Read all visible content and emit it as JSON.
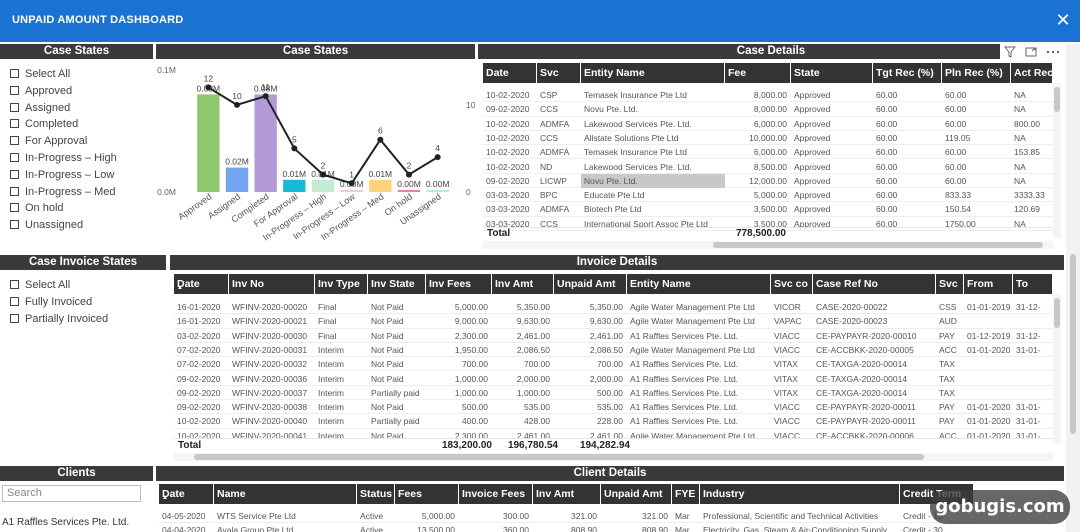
{
  "window": {
    "title": "UNPAID AMOUNT DASHBOARD",
    "close": "✕"
  },
  "case_states_slicer": {
    "header": "Case States",
    "items": [
      "Select All",
      "Approved",
      "Assigned",
      "Completed",
      "For Approval",
      "In-Progress – High",
      "In-Progress – Low",
      "In-Progress – Med",
      "On hold",
      "Unassigned"
    ]
  },
  "case_states_chart": {
    "header": "Case States",
    "y_left_ticks": [
      "0.1M",
      "0.0M"
    ],
    "y_right_ticks": [
      "10",
      "0"
    ]
  },
  "chart_data": {
    "type": "bar",
    "categories": [
      "Approved",
      "Assigned",
      "Completed",
      "For Approval",
      "In-Progress – High",
      "In-Progress – Low",
      "In-Progress – Med",
      "On hold",
      "Unassigned"
    ],
    "series": [
      {
        "values": [
          0.08,
          0.02,
          0.08,
          0.01,
          0.01,
          0.0,
          0.01,
          0.0,
          0.0
        ],
        "data_labels": [
          "0.08M",
          "0.02M",
          "0.08M",
          "0.01M",
          "0.01M",
          "0.00M",
          "0.01M",
          "0.00M",
          "0.00M"
        ],
        "type": "bar"
      },
      {
        "values": [
          12,
          10,
          11,
          5,
          2,
          1,
          6,
          2,
          4
        ],
        "type": "line"
      }
    ],
    "colors": [
      "#8bc96a",
      "#72a6f0",
      "#b59ad9",
      "#18b9d4",
      "#c3ecd2",
      "#f7c9d8",
      "#ffd27a",
      "#f17aa8",
      "#b3eec7"
    ],
    "ylim_left": [
      0,
      0.1
    ],
    "ylim_right": [
      0,
      14
    ],
    "grid": false
  },
  "case_details": {
    "header": "Case Details",
    "icons": [
      "filter-icon",
      "focus-icon",
      "more-icon"
    ],
    "columns": [
      "Date",
      "Svc",
      "Entity Name",
      "Fee",
      "State",
      "Tgt Rec (%)",
      "Pln Rec (%)",
      "Act Rec"
    ],
    "rows": [
      [
        "10-02-2020",
        "CSP",
        "Temasek Insurance Pte Ltd",
        "8,000.00",
        "Approved",
        "60.00",
        "60.00",
        "NA"
      ],
      [
        "09-02-2020",
        "CCS",
        "Novu Pte. Ltd.",
        "8,000.00",
        "Approved",
        "60.00",
        "60.00",
        "NA"
      ],
      [
        "10-02-2020",
        "ADMFA",
        "Lakewood Services Pte. Ltd.",
        "6,000.00",
        "Approved",
        "60.00",
        "60.00",
        "800.00"
      ],
      [
        "10-02-2020",
        "CCS",
        "Allstate Solutions Pte Ltd",
        "10,000.00",
        "Approved",
        "60.00",
        "119.05",
        "NA"
      ],
      [
        "10-02-2020",
        "ADMFA",
        "Temasek Insurance Pte Ltd",
        "6,000.00",
        "Approved",
        "60.00",
        "60.00",
        "153.85"
      ],
      [
        "10-02-2020",
        "ND",
        "Lakewood Services Pte. Ltd.",
        "8,500.00",
        "Approved",
        "60.00",
        "60.00",
        "NA"
      ],
      [
        "09-02-2020",
        "LICWP",
        "Novu Pte. Ltd.",
        "12,000.00",
        "Approved",
        "60.00",
        "60.00",
        "NA"
      ],
      [
        "03-03-2020",
        "BPC",
        "Educate Pte Ltd",
        "5,000.00",
        "Approved",
        "60.00",
        "833.33",
        "3333.33"
      ],
      [
        "03-03-2020",
        "ADMFA",
        "Biotech Pte Ltd",
        "3,500.00",
        "Approved",
        "60.00",
        "150.54",
        "120.69"
      ],
      [
        "03-03-2020",
        "CCS",
        "International Sport Assoc Pte Ltd",
        "3,500.00",
        "Approved",
        "60.00",
        "1750.00",
        "NA"
      ]
    ],
    "total_label": "Total",
    "total_fee": "778,500.00"
  },
  "case_invoice_slicer": {
    "header": "Case Invoice States",
    "items": [
      "Select All",
      "Fully Invoiced",
      "Partially Invoiced"
    ]
  },
  "invoice_details": {
    "header": "Invoice Details",
    "columns": [
      "Date",
      "Inv No",
      "Inv Type",
      "Inv State",
      "Inv Fees",
      "Inv Amt",
      "Unpaid Amt",
      "Entity Name",
      "Svc co",
      "Case Ref No",
      "Svc",
      "From",
      "To"
    ],
    "rows": [
      [
        "16-01-2020",
        "WFINV-2020-00020",
        "Final",
        "Not Paid",
        "5,000.00",
        "5,350.00",
        "5,350.00",
        "Agile Water Management Pte Ltd",
        "VICOR",
        "CASE-2020-00022",
        "CSS",
        "01-01-2019",
        "31-12-"
      ],
      [
        "16-01-2020",
        "WFINV-2020-00021",
        "Final",
        "Not Paid",
        "9,000.00",
        "9,630.00",
        "9,630.00",
        "Agile Water Management Pte Ltd",
        "VAPAC",
        "CASE-2020-00023",
        "AUD",
        "",
        ""
      ],
      [
        "03-02-2020",
        "WFINV-2020-00030",
        "Final",
        "Not Paid",
        "2,300.00",
        "2,461.00",
        "2,461.00",
        "A1 Raffles Services Pte. Ltd.",
        "VIACC",
        "CE-PAYPAYR-2020-00010",
        "PAY",
        "01-12-2019",
        "31-12-"
      ],
      [
        "07-02-2020",
        "WFINV-2020-00031",
        "Interim",
        "Not Paid",
        "1,950.00",
        "2,086.50",
        "2,086.50",
        "Agile Water Management Pte Ltd",
        "VIACC",
        "CE-ACCBKK-2020-00005",
        "ACC",
        "01-01-2020",
        "31-01-"
      ],
      [
        "07-02-2020",
        "WFINV-2020-00032",
        "Interim",
        "Not Paid",
        "700.00",
        "700.00",
        "700.00",
        "A1 Raffles Services Pte. Ltd.",
        "VITAX",
        "CE-TAXGA-2020-00014",
        "TAX",
        "",
        ""
      ],
      [
        "09-02-2020",
        "WFINV-2020-00036",
        "Interim",
        "Not Paid",
        "1,000.00",
        "2,000.00",
        "2,000.00",
        "A1 Raffles Services Pte. Ltd.",
        "VITAX",
        "CE-TAXGA-2020-00014",
        "TAX",
        "",
        ""
      ],
      [
        "09-02-2020",
        "WFINV-2020-00037",
        "Interim",
        "Partially paid",
        "1,000.00",
        "1,000.00",
        "500.00",
        "A1 Raffles Services Pte. Ltd.",
        "VITAX",
        "CE-TAXGA-2020-00014",
        "TAX",
        "",
        ""
      ],
      [
        "09-02-2020",
        "WFINV-2020-00038",
        "Interim",
        "Not Paid",
        "500.00",
        "535.00",
        "535.00",
        "A1 Raffles Services Pte. Ltd.",
        "VIACC",
        "CE-PAYPAYR-2020-00011",
        "PAY",
        "01-01-2020",
        "31-01-"
      ],
      [
        "10-02-2020",
        "WFINV-2020-00040",
        "Interim",
        "Partially paid",
        "400.00",
        "428.00",
        "228.00",
        "A1 Raffles Services Pte. Ltd.",
        "VIACC",
        "CE-PAYPAYR-2020-00011",
        "PAY",
        "01-01-2020",
        "31-01-"
      ],
      [
        "10-02-2020",
        "WFINV-2020-00041",
        "Interim",
        "Not Paid",
        "2,300.00",
        "2,461.00",
        "2,461.00",
        "Agile Water Management Pte Ltd",
        "VIACC",
        "CE-ACCBKK-2020-00006",
        "ACC",
        "01-01-2020",
        "31-01-"
      ]
    ],
    "total_label": "Total",
    "total_fees": "183,200.00",
    "total_amt": "196,780.54",
    "total_unpaid": "194,282.94"
  },
  "clients": {
    "header": "Clients",
    "search_placeholder": "Search",
    "items": [
      "A1 Raffles Services Pte. Ltd."
    ]
  },
  "client_details": {
    "header": "Client Details",
    "columns": [
      "Date",
      "Name",
      "Status",
      "Fees",
      "Invoice Fees",
      "Inv Amt",
      "Unpaid Amt",
      "FYE",
      "Industry",
      "Credit Term"
    ],
    "rows": [
      [
        "04-05-2020",
        "WTS Service Pte Ltd",
        "Active",
        "5,000.00",
        "300.00",
        "321.00",
        "321.00",
        "Mar",
        "Professional, Scientific and Technical Activities",
        "Credit - 15"
      ],
      [
        "04-04-2020",
        "Ayala Group Pte Ltd",
        "Active",
        "13,500.00",
        "360.00",
        "808.90",
        "808.90",
        "Mar",
        "Electricity, Gas, Steam & Air-Conditioning Supply",
        "Credit - 30"
      ]
    ]
  },
  "watermark": "gobugis.com"
}
